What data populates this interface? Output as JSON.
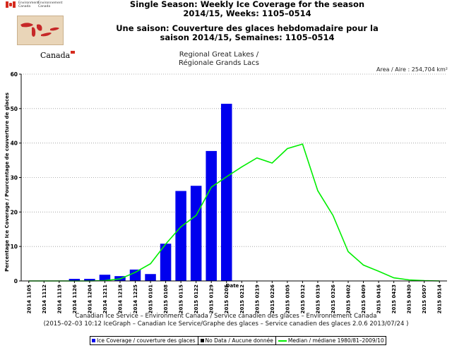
{
  "header": {
    "title_en_line1": "Single Season: Weekly Ice Coverage for the season",
    "title_en_line2": "2014/15, Weeks: 1105–0514",
    "title_fr_line1": "Une saison: Couverture des glaces hebdomadaire pour la",
    "title_fr_line2": "saison 2014/15, Semaines: 1105–0514",
    "dept_en": "Environment Canada",
    "dept_fr": "Environnement Canada",
    "wordmark": "Canada",
    "region_line1": "Regional Great Lakes /",
    "region_line2": "Régionale Grands Lacs",
    "area": "Area / Aire : 254,704 km²"
  },
  "footer": {
    "line1": "Canadian Ice Service – Environment Canada / Service canadien des glaces – Environnement Canada",
    "line2": "(2015–02–03 10:12 IceGraph – Canadian Ice Service/Graphe des glaces – Service canadien des glaces 2.0.6 2013/07/24 )"
  },
  "legend": {
    "ice": "Ice Coverage / couverture des glaces",
    "nodata": "No Data / Aucune donnée",
    "median": "Median / médiane 1980/81–2009/10"
  },
  "colors": {
    "bar": "#0000ee",
    "median": "#00ee00",
    "grid": "#999999"
  },
  "chart_data": {
    "type": "bar",
    "title": "Single Season: Weekly Ice Coverage for the season 2014/15, Weeks: 1105–0514",
    "xlabel": "Date",
    "ylabel": "Percentage Ice Coverage / Pourcentage de couverture de glaces",
    "ylim": [
      0,
      60
    ],
    "yticks": [
      0,
      10,
      20,
      30,
      40,
      50,
      60
    ],
    "categories": [
      "2014 1105",
      "2014 1112",
      "2014 1119",
      "2014 1126",
      "2014 1204",
      "2014 1211",
      "2014 1218",
      "2014 1225",
      "2015 0101",
      "2015 0108",
      "2015 0115",
      "2015 0122",
      "2015 0129",
      "2015 0205",
      "2015 0212",
      "2015 0219",
      "2015 0226",
      "2015 0305",
      "2015 0312",
      "2015 0319",
      "2015 0326",
      "2015 0402",
      "2015 0409",
      "2015 0416",
      "2015 0423",
      "2015 0430",
      "2015 0507",
      "2015 0514"
    ],
    "series": [
      {
        "name": "Ice Coverage / couverture des glaces",
        "kind": "bar",
        "values": [
          0,
          0,
          0,
          0.6,
          0.6,
          1.8,
          1.4,
          3.3,
          2.0,
          10.8,
          26.1,
          27.6,
          37.7,
          51.4,
          null,
          null,
          null,
          null,
          null,
          null,
          null,
          null,
          null,
          null,
          null,
          null,
          null,
          null
        ]
      },
      {
        "name": "Median / médiane 1980/81–2009/10",
        "kind": "line",
        "values": [
          0,
          0,
          0,
          0,
          0,
          0.1,
          0.6,
          2.5,
          5.0,
          10.7,
          15.7,
          19.0,
          27.2,
          30.2,
          33.1,
          35.7,
          34.2,
          38.4,
          39.7,
          26.2,
          19.0,
          8.5,
          4.6,
          2.8,
          0.9,
          0.3,
          0.1,
          0
        ]
      }
    ],
    "grid": true,
    "legend_position": "bottom"
  }
}
